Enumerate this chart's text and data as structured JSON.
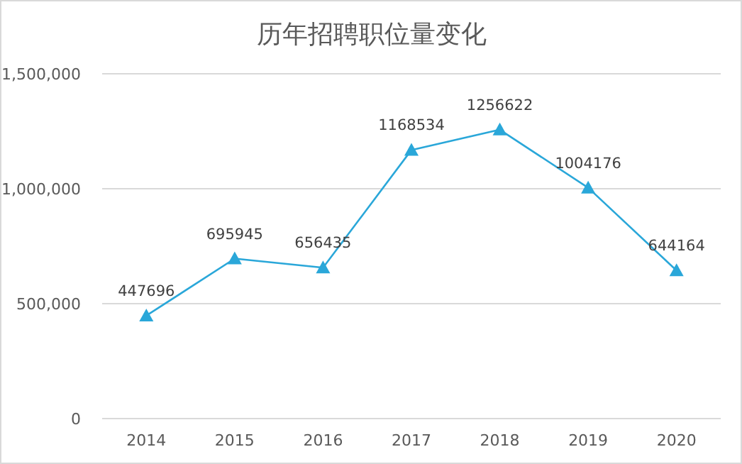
{
  "chart_data": {
    "type": "line",
    "title": "历年招聘职位量变化",
    "categories": [
      "2014",
      "2015",
      "2016",
      "2017",
      "2018",
      "2019",
      "2020"
    ],
    "series": [
      {
        "color": "#2aa7d9",
        "values": [
          447696,
          695945,
          656435,
          1168534,
          1256622,
          1004176,
          644164
        ]
      }
    ],
    "ylim": [
      0,
      1500000
    ],
    "yticks": [
      {
        "value": 0,
        "label": "0"
      },
      {
        "value": 500000,
        "label": "500,000"
      },
      {
        "value": 1000000,
        "label": "1,000,000"
      },
      {
        "value": 1500000,
        "label": "1,500,000"
      }
    ],
    "grid": "y",
    "marker": "triangle",
    "line_style": "solid",
    "data_labels": true
  }
}
